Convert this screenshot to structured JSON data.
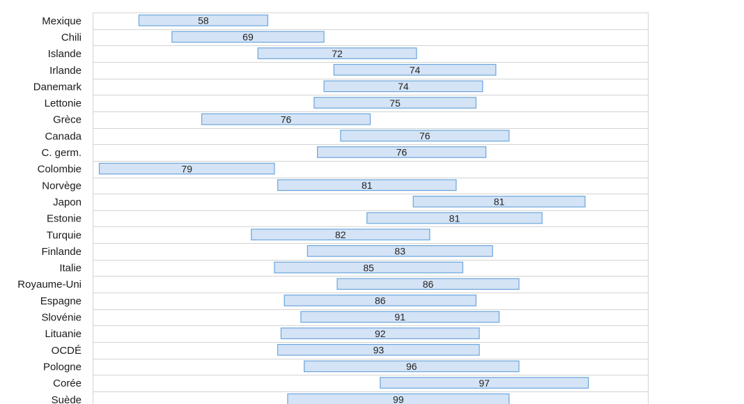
{
  "chart_data": {
    "type": "bar",
    "subtype": "floating-range",
    "categories": [
      "Mexique",
      "Chili",
      "Islande",
      "Irlande",
      "Danemark",
      "Lettonie",
      "Grèce",
      "Canada",
      "C. germ.",
      "Colombie",
      "Norvège",
      "Japon",
      "Estonie",
      "Turquie",
      "Finlande",
      "Italie",
      "Royaume-Uni",
      "Espagne",
      "Slovénie",
      "Lituanie",
      "OCDÉ",
      "Pologne",
      "Corée",
      "Suède"
    ],
    "values": [
      58,
      69,
      72,
      74,
      74,
      75,
      76,
      76,
      76,
      79,
      81,
      81,
      81,
      82,
      83,
      85,
      86,
      86,
      91,
      92,
      93,
      96,
      97,
      99
    ],
    "ranges": [
      [
        14,
        53
      ],
      [
        24,
        70
      ],
      [
        50,
        98
      ],
      [
        73,
        122
      ],
      [
        70,
        118
      ],
      [
        67,
        116
      ],
      [
        33,
        84
      ],
      [
        75,
        126
      ],
      [
        68,
        119
      ],
      [
        2,
        55
      ],
      [
        56,
        110
      ],
      [
        97,
        149
      ],
      [
        83,
        136
      ],
      [
        48,
        102
      ],
      [
        65,
        121
      ],
      [
        55,
        112
      ],
      [
        74,
        129
      ],
      [
        58,
        116
      ],
      [
        63,
        123
      ],
      [
        57,
        117
      ],
      [
        56,
        117
      ],
      [
        64,
        129
      ],
      [
        87,
        150
      ],
      [
        59,
        126
      ]
    ],
    "xlim": [
      0,
      168
    ],
    "title": "",
    "xlabel": "",
    "ylabel": "",
    "grid": true,
    "legend": "none",
    "colors": {
      "bar_fill": "#d4e3f5",
      "bar_stroke": "#6aa5dc",
      "grid": "#d3d3d3",
      "text": "#1a1a1a"
    }
  }
}
